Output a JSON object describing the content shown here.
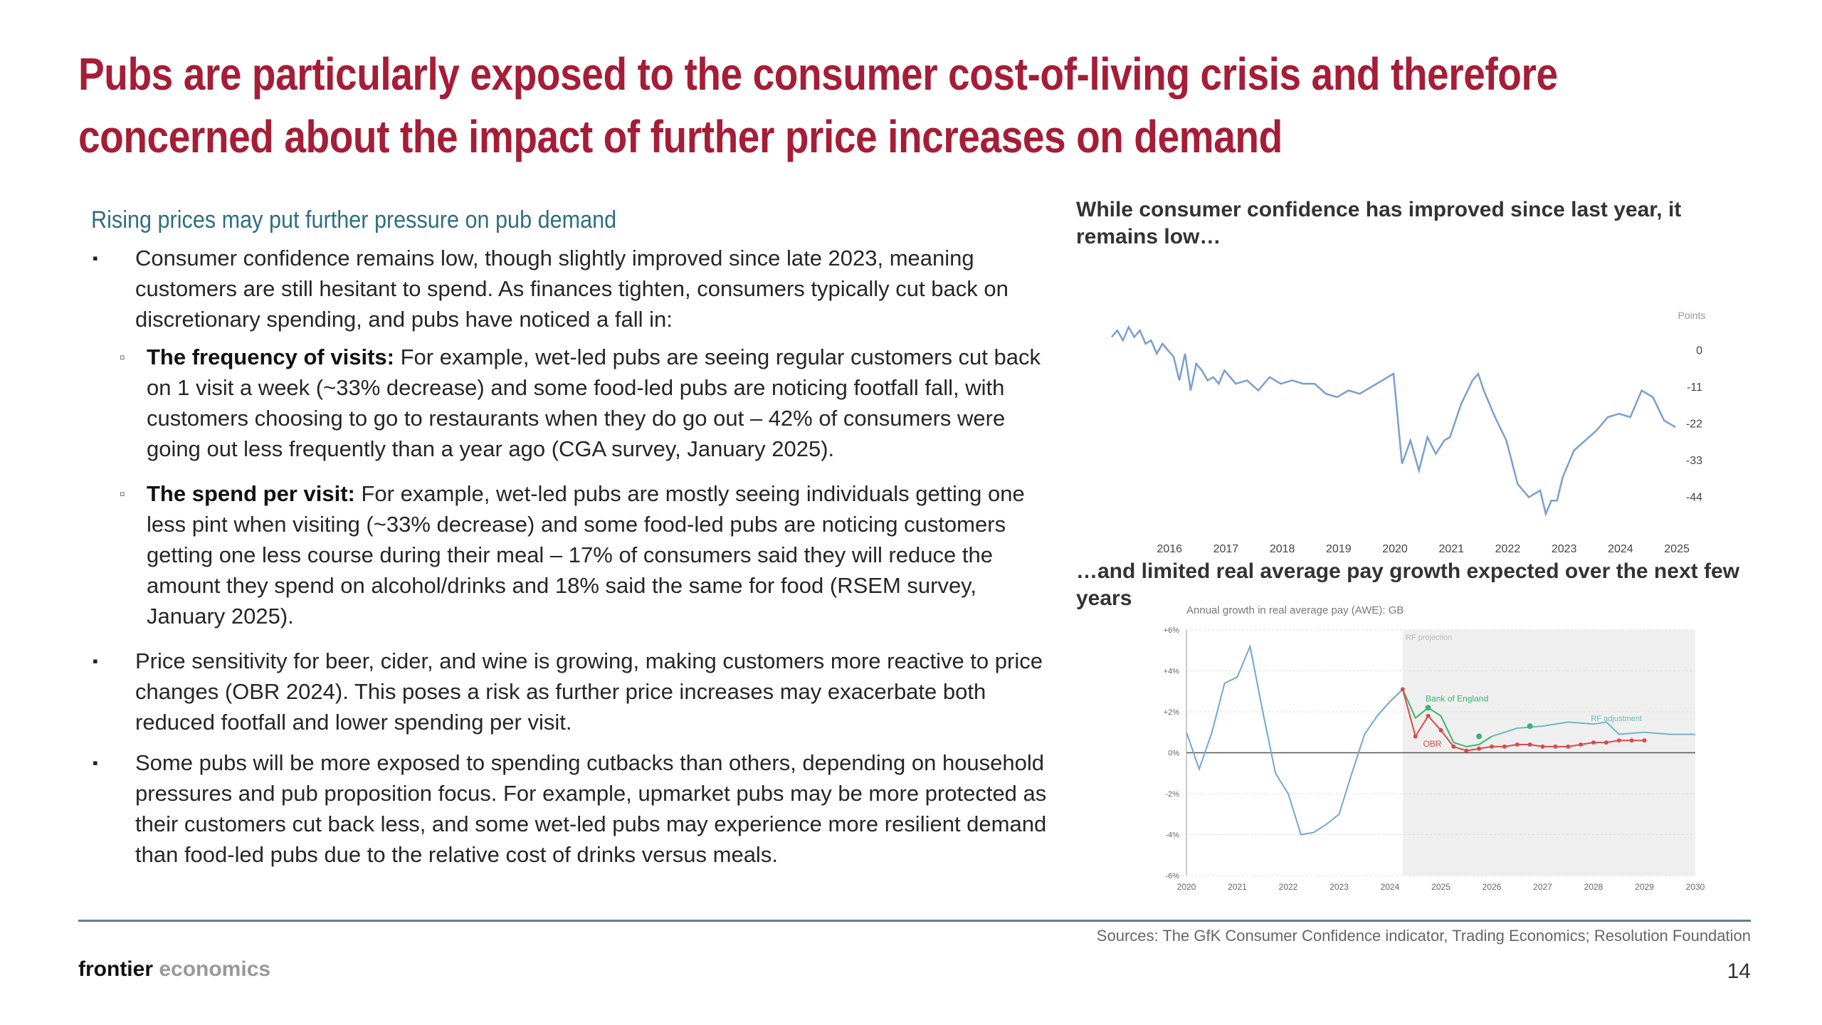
{
  "title": {
    "line1": "Pubs are particularly exposed to the consumer cost-of-living crisis and therefore",
    "line2": "concerned about the impact of further price increases on demand"
  },
  "left": {
    "subhead": "Rising prices may put further pressure on pub demand",
    "bullet1": "Consumer confidence remains low, though slightly improved since late 2023, meaning customers are still hesitant to spend. As finances tighten, consumers typically cut back on discretionary spending, and pubs have noticed a fall in:",
    "sub1_bold": "The frequency of visits:",
    "sub1_text": " For example, wet-led pubs are seeing regular customers cut back on 1 visit a week (~33% decrease) and some food-led pubs are noticing footfall fall, with customers choosing to go to restaurants when they do go out – 42% of consumers were going out less frequently than a year ago (CGA survey, January 2025).",
    "sub2_bold": "The spend per visit:",
    "sub2_text": " For example, wet-led pubs are mostly seeing individuals getting one less pint when visiting (~33% decrease) and some food-led pubs are noticing customers getting one less course during their meal – 17% of consumers said they will reduce the amount they spend on alcohol/drinks and 18% said the same for food (RSEM survey, January 2025).",
    "bullet2": "Price sensitivity for beer, cider, and wine is growing, making customers more reactive to price changes (OBR 2024). This poses a risk as further price increases may exacerbate both reduced footfall and lower spending per visit.",
    "bullet3": "Some pubs will be more exposed to spending cutbacks than others, depending on household pressures and pub proposition focus. For example, upmarket pubs may be more protected as their customers cut back less, and some wet-led pubs may experience more resilient demand than food-led pubs due to the relative cost of drinks versus meals.",
    "bullet_marker": "▪",
    "sub_marker": "▫"
  },
  "chart1_heading": "While consumer confidence has improved since last year, it remains low…",
  "chart2_heading": "…and limited real average pay growth expected over the next few years",
  "footer": {
    "sources": "Sources: The GfK Consumer Confidence indicator, Trading Economics; Resolution Foundation",
    "logo_a": "frontier",
    "logo_b": " economics",
    "page": "14"
  },
  "colors": {
    "title": "#a51d36",
    "subhead": "#2e6e80",
    "line1": "#7a9fd0",
    "boe": "#3cb371",
    "rf": "#6fb7c2",
    "obr": "#d94a4a",
    "rule": "#5d7f95"
  },
  "chart_data": [
    {
      "type": "line",
      "title": "",
      "unit_label": "Points",
      "ylabel": "",
      "xlabel": "",
      "ylim": [
        -52,
        12
      ],
      "yticks": [
        0,
        -11,
        -22,
        -33,
        -44
      ],
      "xticks": [
        "2016",
        "2017",
        "2018",
        "2019",
        "2020",
        "2021",
        "2022",
        "2023",
        "2024",
        "2025"
      ],
      "xlim": [
        2015.0,
        2025.1
      ],
      "grid": false,
      "series": [
        {
          "x": [
            2015.0,
            2015.1,
            2015.2,
            2015.3,
            2015.4,
            2015.5,
            2015.6,
            2015.7,
            2015.8,
            2015.9,
            2016.0,
            2016.1,
            2016.2,
            2016.3,
            2016.4,
            2016.5,
            2016.6,
            2016.7,
            2016.8,
            2016.9,
            2017.0,
            2017.2,
            2017.4,
            2017.6,
            2017.8,
            2018.0,
            2018.2,
            2018.4,
            2018.6,
            2018.8,
            2019.0,
            2019.2,
            2019.4,
            2019.6,
            2019.8,
            2020.0,
            2020.15,
            2020.3,
            2020.45,
            2020.6,
            2020.75,
            2020.9,
            2021.0,
            2021.2,
            2021.4,
            2021.5,
            2021.6,
            2021.8,
            2022.0,
            2022.2,
            2022.4,
            2022.6,
            2022.7,
            2022.8,
            2022.9,
            2023.0,
            2023.2,
            2023.4,
            2023.6,
            2023.8,
            2024.0,
            2024.2,
            2024.4,
            2024.6,
            2024.8,
            2025.0
          ],
          "y": [
            4,
            6,
            3,
            7,
            4,
            6,
            2,
            3,
            -1,
            2,
            0,
            -2,
            -9,
            -1,
            -12,
            -4,
            -6,
            -9,
            -8,
            -10,
            -6,
            -10,
            -9,
            -12,
            -8,
            -10,
            -9,
            -10,
            -10,
            -13,
            -14,
            -12,
            -13,
            -11,
            -9,
            -7,
            -34,
            -27,
            -36,
            -26,
            -31,
            -27,
            -26,
            -16,
            -9,
            -7,
            -12,
            -20,
            -27,
            -40,
            -44,
            -42,
            -49,
            -45,
            -45,
            -38,
            -30,
            -27,
            -24,
            -20,
            -19,
            -20,
            -12,
            -14,
            -21,
            -23
          ]
        }
      ]
    },
    {
      "type": "line",
      "title": "Annual growth in real average pay (AWE): GB",
      "ylabel": "",
      "xlabel": "",
      "ylim": [
        -6,
        6
      ],
      "yticks": [
        "+6%",
        "+4%",
        "+2%",
        "0%",
        "-2%",
        "-4%",
        "-6%"
      ],
      "xticks": [
        "2020",
        "2021",
        "2022",
        "2023",
        "2024",
        "2025",
        "2026",
        "2027",
        "2028",
        "2029",
        "2030"
      ],
      "xlim": [
        2020,
        2030
      ],
      "shaded_region_label": "RF projection",
      "shaded_from": 2024.25,
      "grid": true,
      "series": [
        {
          "name": "",
          "x": [
            2020.0,
            2020.25,
            2020.5,
            2020.75,
            2021.0,
            2021.25,
            2021.5,
            2021.75,
            2022.0,
            2022.25,
            2022.5,
            2022.75,
            2023.0,
            2023.25,
            2023.5,
            2023.75,
            2024.0,
            2024.25
          ],
          "y": [
            1.0,
            -0.8,
            1.0,
            3.4,
            3.7,
            5.2,
            2.0,
            -1.0,
            -2.0,
            -4.0,
            -3.9,
            -3.5,
            -3.0,
            -1.0,
            0.9,
            1.8,
            2.5,
            3.1
          ]
        },
        {
          "name": "Bank of England",
          "x": [
            2024.25,
            2024.5,
            2024.75,
            2025.0,
            2025.25,
            2025.5,
            2025.75,
            2026.0
          ],
          "y": [
            3.1,
            1.7,
            2.2,
            1.8,
            0.5,
            0.3,
            0.4,
            0.8
          ]
        },
        {
          "name": "RF adjustment",
          "x": [
            2026.0,
            2026.5,
            2027.0,
            2027.5,
            2028.0,
            2028.25,
            2028.5,
            2029.0,
            2029.5,
            2030.0
          ],
          "y": [
            0.8,
            1.2,
            1.3,
            1.5,
            1.4,
            1.5,
            0.9,
            1.0,
            0.9,
            0.9
          ]
        },
        {
          "name": "OBR",
          "x": [
            2024.25,
            2024.5,
            2024.75,
            2025.0,
            2025.25,
            2025.5,
            2025.75,
            2026.0,
            2026.25,
            2026.5,
            2026.75,
            2027.0,
            2027.25,
            2027.5,
            2027.75,
            2028.0,
            2028.25,
            2028.5,
            2028.75,
            2029.0
          ],
          "y": [
            3.1,
            0.8,
            1.8,
            1.1,
            0.3,
            0.1,
            0.2,
            0.3,
            0.3,
            0.4,
            0.4,
            0.3,
            0.3,
            0.3,
            0.4,
            0.5,
            0.5,
            0.6,
            0.6,
            0.6
          ]
        }
      ]
    }
  ]
}
